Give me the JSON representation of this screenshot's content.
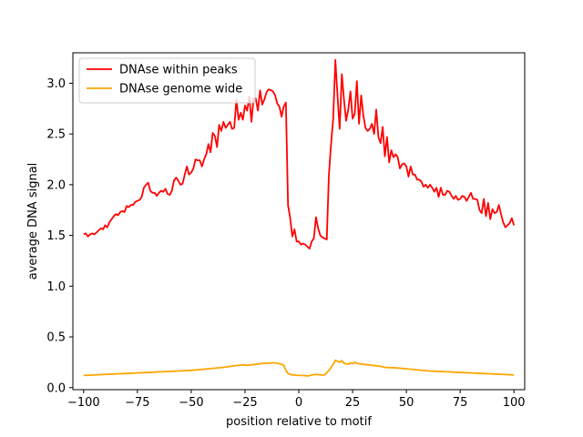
{
  "chart_data": {
    "type": "line",
    "xlabel": "position relative to motif",
    "ylabel": "average DNA signal",
    "xlim": [
      -105,
      105
    ],
    "ylim": [
      -0.02,
      3.3
    ],
    "xticks": [
      -100,
      -75,
      -50,
      -25,
      0,
      25,
      50,
      75,
      100
    ],
    "xtick_labels": [
      "−100",
      "−75",
      "−50",
      "−25",
      "0",
      "25",
      "50",
      "75",
      "100"
    ],
    "yticks": [
      0.0,
      0.5,
      1.0,
      1.5,
      2.0,
      2.5,
      3.0
    ],
    "ytick_labels": [
      "0.0",
      "0.5",
      "1.0",
      "1.5",
      "2.0",
      "2.5",
      "3.0"
    ],
    "grid": false,
    "legend_position": "top-left",
    "series": [
      {
        "name": "DNAse within peaks",
        "color": "#ff0000",
        "points": [
          [
            -100,
            1.51
          ],
          [
            -99,
            1.52
          ],
          [
            -98,
            1.49
          ],
          [
            -97,
            1.51
          ],
          [
            -96,
            1.52
          ],
          [
            -95,
            1.51
          ],
          [
            -94,
            1.53
          ],
          [
            -93,
            1.55
          ],
          [
            -92,
            1.57
          ],
          [
            -91,
            1.56
          ],
          [
            -90,
            1.6
          ],
          [
            -89,
            1.58
          ],
          [
            -88,
            1.63
          ],
          [
            -87,
            1.66
          ],
          [
            -86,
            1.69
          ],
          [
            -85,
            1.71
          ],
          [
            -84,
            1.7
          ],
          [
            -83,
            1.73
          ],
          [
            -82,
            1.74
          ],
          [
            -81,
            1.73
          ],
          [
            -80,
            1.79
          ],
          [
            -79,
            1.78
          ],
          [
            -78,
            1.8
          ],
          [
            -77,
            1.8
          ],
          [
            -76,
            1.83
          ],
          [
            -75,
            1.84
          ],
          [
            -74,
            1.85
          ],
          [
            -73,
            1.88
          ],
          [
            -72,
            1.97
          ],
          [
            -71,
            2.0
          ],
          [
            -70,
            2.02
          ],
          [
            -69,
            1.94
          ],
          [
            -68,
            1.92
          ],
          [
            -67,
            1.92
          ],
          [
            -66,
            1.89
          ],
          [
            -65,
            1.92
          ],
          [
            -64,
            1.94
          ],
          [
            -63,
            1.93
          ],
          [
            -62,
            1.96
          ],
          [
            -61,
            1.91
          ],
          [
            -60,
            1.9
          ],
          [
            -59,
            1.94
          ],
          [
            -58,
            2.04
          ],
          [
            -57,
            2.07
          ],
          [
            -56,
            2.04
          ],
          [
            -55,
            2.0
          ],
          [
            -54,
            2.01
          ],
          [
            -53,
            2.1
          ],
          [
            -52,
            2.18
          ],
          [
            -51,
            2.1
          ],
          [
            -50,
            2.12
          ],
          [
            -49,
            2.16
          ],
          [
            -48,
            2.25
          ],
          [
            -47,
            2.24
          ],
          [
            -46,
            2.24
          ],
          [
            -45,
            2.18
          ],
          [
            -44,
            2.25
          ],
          [
            -43,
            2.3
          ],
          [
            -42,
            2.4
          ],
          [
            -41,
            2.32
          ],
          [
            -40,
            2.51
          ],
          [
            -39,
            2.48
          ],
          [
            -38,
            2.37
          ],
          [
            -37,
            2.59
          ],
          [
            -36,
            2.53
          ],
          [
            -35,
            2.62
          ],
          [
            -34,
            2.56
          ],
          [
            -33,
            2.59
          ],
          [
            -32,
            2.62
          ],
          [
            -31,
            2.55
          ],
          [
            -30,
            2.56
          ],
          [
            -29,
            2.84
          ],
          [
            -28,
            2.64
          ],
          [
            -27,
            2.71
          ],
          [
            -26,
            2.64
          ],
          [
            -25,
            2.78
          ],
          [
            -24,
            2.73
          ],
          [
            -23,
            2.87
          ],
          [
            -22,
            2.62
          ],
          [
            -21,
            2.85
          ],
          [
            -20,
            2.85
          ],
          [
            -19,
            2.73
          ],
          [
            -18,
            2.93
          ],
          [
            -17,
            2.79
          ],
          [
            -16,
            2.84
          ],
          [
            -15,
            2.91
          ],
          [
            -14,
            2.94
          ],
          [
            -13,
            2.93
          ],
          [
            -12,
            2.92
          ],
          [
            -11,
            2.88
          ],
          [
            -10,
            2.8
          ],
          [
            -9,
            2.77
          ],
          [
            -8,
            2.67
          ],
          [
            -7,
            2.77
          ],
          [
            -6,
            2.81
          ],
          [
            -5,
            1.8
          ],
          [
            -4,
            1.67
          ],
          [
            -3,
            1.49
          ],
          [
            -2,
            1.56
          ],
          [
            -1,
            1.44
          ],
          [
            0,
            1.44
          ],
          [
            1,
            1.41
          ],
          [
            2,
            1.42
          ],
          [
            3,
            1.41
          ],
          [
            4,
            1.39
          ],
          [
            5,
            1.37
          ],
          [
            6,
            1.44
          ],
          [
            7,
            1.47
          ],
          [
            8,
            1.68
          ],
          [
            9,
            1.57
          ],
          [
            10,
            1.5
          ],
          [
            11,
            1.48
          ],
          [
            12,
            1.47
          ],
          [
            13,
            1.46
          ],
          [
            14,
            2.1
          ],
          [
            15,
            2.4
          ],
          [
            16,
            2.65
          ],
          [
            17,
            3.23
          ],
          [
            18,
            2.88
          ],
          [
            19,
            2.55
          ],
          [
            20,
            3.09
          ],
          [
            21,
            2.84
          ],
          [
            22,
            2.63
          ],
          [
            23,
            2.74
          ],
          [
            24,
            2.92
          ],
          [
            25,
            2.65
          ],
          [
            26,
            2.7
          ],
          [
            27,
            3.02
          ],
          [
            28,
            2.6
          ],
          [
            29,
            2.88
          ],
          [
            30,
            2.68
          ],
          [
            31,
            2.56
          ],
          [
            32,
            2.53
          ],
          [
            33,
            2.55
          ],
          [
            34,
            2.6
          ],
          [
            35,
            2.5
          ],
          [
            36,
            2.74
          ],
          [
            37,
            2.47
          ],
          [
            38,
            2.41
          ],
          [
            39,
            2.57
          ],
          [
            40,
            2.28
          ],
          [
            41,
            2.47
          ],
          [
            42,
            2.22
          ],
          [
            43,
            2.34
          ],
          [
            44,
            2.27
          ],
          [
            45,
            2.3
          ],
          [
            46,
            2.27
          ],
          [
            47,
            2.16
          ],
          [
            48,
            2.2
          ],
          [
            49,
            2.21
          ],
          [
            50,
            2.18
          ],
          [
            51,
            2.08
          ],
          [
            52,
            2.18
          ],
          [
            53,
            2.1
          ],
          [
            54,
            2.1
          ],
          [
            55,
            2.05
          ],
          [
            56,
            2.05
          ],
          [
            57,
            2.03
          ],
          [
            58,
            1.98
          ],
          [
            59,
            2.0
          ],
          [
            60,
            1.97
          ],
          [
            61,
            2.0
          ],
          [
            62,
            1.97
          ],
          [
            63,
            1.93
          ],
          [
            64,
            1.97
          ],
          [
            65,
            1.88
          ],
          [
            66,
            1.97
          ],
          [
            67,
            1.9
          ],
          [
            68,
            1.9
          ],
          [
            69,
            1.94
          ],
          [
            70,
            1.93
          ],
          [
            71,
            1.89
          ],
          [
            72,
            1.86
          ],
          [
            73,
            1.89
          ],
          [
            74,
            1.85
          ],
          [
            75,
            1.86
          ],
          [
            76,
            1.89
          ],
          [
            77,
            1.88
          ],
          [
            78,
            1.84
          ],
          [
            79,
            1.88
          ],
          [
            80,
            1.92
          ],
          [
            81,
            1.86
          ],
          [
            82,
            1.86
          ],
          [
            83,
            1.85
          ],
          [
            84,
            1.75
          ],
          [
            85,
            1.72
          ],
          [
            86,
            1.86
          ],
          [
            87,
            1.69
          ],
          [
            88,
            1.82
          ],
          [
            89,
            1.66
          ],
          [
            90,
            1.76
          ],
          [
            91,
            1.72
          ],
          [
            92,
            1.73
          ],
          [
            93,
            1.8
          ],
          [
            94,
            1.71
          ],
          [
            95,
            1.63
          ],
          [
            96,
            1.58
          ],
          [
            97,
            1.6
          ],
          [
            98,
            1.62
          ],
          [
            99,
            1.67
          ],
          [
            100,
            1.6
          ]
        ]
      },
      {
        "name": "DNAse genome wide",
        "color": "#ffa500",
        "points": [
          [
            -100,
            0.12
          ],
          [
            -95,
            0.125
          ],
          [
            -90,
            0.13
          ],
          [
            -85,
            0.135
          ],
          [
            -80,
            0.14
          ],
          [
            -75,
            0.145
          ],
          [
            -70,
            0.15
          ],
          [
            -65,
            0.155
          ],
          [
            -60,
            0.16
          ],
          [
            -55,
            0.165
          ],
          [
            -50,
            0.17
          ],
          [
            -45,
            0.18
          ],
          [
            -40,
            0.19
          ],
          [
            -35,
            0.2
          ],
          [
            -30,
            0.215
          ],
          [
            -28,
            0.22
          ],
          [
            -26,
            0.225
          ],
          [
            -24,
            0.22
          ],
          [
            -22,
            0.225
          ],
          [
            -20,
            0.23
          ],
          [
            -18,
            0.235
          ],
          [
            -16,
            0.24
          ],
          [
            -14,
            0.24
          ],
          [
            -12,
            0.245
          ],
          [
            -10,
            0.24
          ],
          [
            -8,
            0.23
          ],
          [
            -7,
            0.22
          ],
          [
            -6,
            0.17
          ],
          [
            -5,
            0.14
          ],
          [
            -4,
            0.13
          ],
          [
            -3,
            0.125
          ],
          [
            -2,
            0.125
          ],
          [
            0,
            0.12
          ],
          [
            2,
            0.12
          ],
          [
            4,
            0.115
          ],
          [
            6,
            0.125
          ],
          [
            8,
            0.13
          ],
          [
            10,
            0.125
          ],
          [
            12,
            0.125
          ],
          [
            14,
            0.17
          ],
          [
            15,
            0.2
          ],
          [
            16,
            0.23
          ],
          [
            17,
            0.27
          ],
          [
            18,
            0.26
          ],
          [
            19,
            0.25
          ],
          [
            20,
            0.265
          ],
          [
            21,
            0.24
          ],
          [
            22,
            0.235
          ],
          [
            23,
            0.23
          ],
          [
            24,
            0.245
          ],
          [
            25,
            0.235
          ],
          [
            26,
            0.25
          ],
          [
            27,
            0.24
          ],
          [
            28,
            0.235
          ],
          [
            30,
            0.23
          ],
          [
            32,
            0.225
          ],
          [
            34,
            0.22
          ],
          [
            36,
            0.215
          ],
          [
            38,
            0.21
          ],
          [
            40,
            0.2
          ],
          [
            45,
            0.195
          ],
          [
            50,
            0.185
          ],
          [
            55,
            0.175
          ],
          [
            60,
            0.165
          ],
          [
            65,
            0.16
          ],
          [
            70,
            0.155
          ],
          [
            75,
            0.15
          ],
          [
            80,
            0.145
          ],
          [
            85,
            0.14
          ],
          [
            90,
            0.135
          ],
          [
            95,
            0.13
          ],
          [
            100,
            0.125
          ]
        ]
      }
    ]
  }
}
